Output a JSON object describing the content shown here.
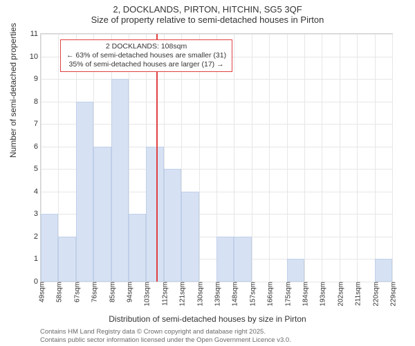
{
  "chart": {
    "type": "histogram",
    "title_line1": "2, DOCKLANDS, PIRTON, HITCHIN, SG5 3QF",
    "title_line2": "Size of property relative to semi-detached houses in Pirton",
    "title_fontsize": 13,
    "y_axis_label": "Number of semi-detached properties",
    "x_axis_label": "Distribution of semi-detached houses by size in Pirton",
    "axis_label_fontsize": 12,
    "background_color": "#ffffff",
    "grid_color": "#e6e6e6",
    "border_color": "#d0d0d0",
    "bar_fill": "#d6e1f3",
    "bar_border": "#c0cfe8",
    "reference_line_color": "#e04040",
    "text_color": "#333333",
    "footer_color": "#6a6a6a",
    "ylim": [
      0,
      11
    ],
    "yticks": [
      0,
      1,
      2,
      3,
      4,
      5,
      6,
      7,
      8,
      9,
      10,
      11
    ],
    "x_tick_labels": [
      "49sqm",
      "58sqm",
      "67sqm",
      "76sqm",
      "85sqm",
      "94sqm",
      "103sqm",
      "112sqm",
      "121sqm",
      "130sqm",
      "139sqm",
      "148sqm",
      "157sqm",
      "166sqm",
      "175sqm",
      "184sqm",
      "193sqm",
      "202sqm",
      "211sqm",
      "220sqm",
      "229sqm"
    ],
    "bars": [
      {
        "x_start": 49,
        "x_end": 58,
        "count": 3
      },
      {
        "x_start": 58,
        "x_end": 67,
        "count": 2
      },
      {
        "x_start": 67,
        "x_end": 76,
        "count": 8
      },
      {
        "x_start": 76,
        "x_end": 85,
        "count": 6
      },
      {
        "x_start": 85,
        "x_end": 94,
        "count": 9
      },
      {
        "x_start": 94,
        "x_end": 103,
        "count": 3
      },
      {
        "x_start": 103,
        "x_end": 112,
        "count": 6
      },
      {
        "x_start": 112,
        "x_end": 121,
        "count": 5
      },
      {
        "x_start": 121,
        "x_end": 130,
        "count": 4
      },
      {
        "x_start": 139,
        "x_end": 148,
        "count": 2
      },
      {
        "x_start": 148,
        "x_end": 157,
        "count": 2
      },
      {
        "x_start": 175,
        "x_end": 184,
        "count": 1
      },
      {
        "x_start": 220,
        "x_end": 229,
        "count": 1
      }
    ],
    "x_domain": [
      49,
      229
    ],
    "reference_value": 108,
    "annotation": {
      "line1": "2 DOCKLANDS: 108sqm",
      "line2": "← 63% of semi-detached houses are smaller (31)",
      "line3": "35% of semi-detached houses are larger (17) →"
    },
    "footer_line1": "Contains HM Land Registry data © Crown copyright and database right 2025.",
    "footer_line2": "Contains public sector information licensed under the Open Government Licence v3.0."
  }
}
